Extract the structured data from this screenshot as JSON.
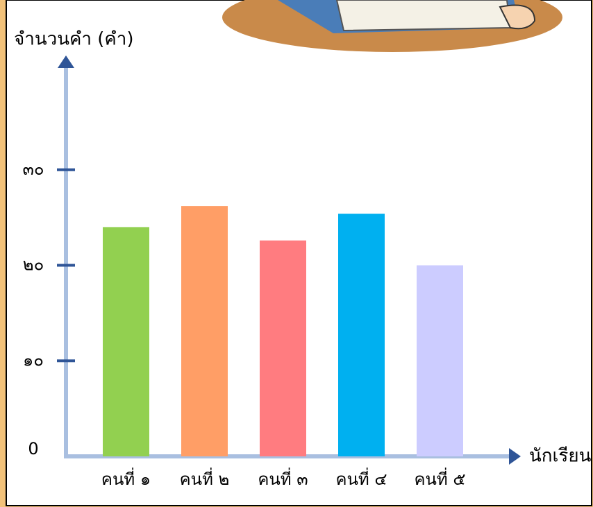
{
  "chart_data": {
    "type": "bar",
    "y_label": "จำนวนคำ (คำ)",
    "x_label": "นักเรียน",
    "categories": [
      "คนที่ ๑",
      "คนที่ ๒",
      "คนที่ ๓",
      "คนที่ ๔",
      "คนที่ ๕"
    ],
    "values": [
      24,
      26.2,
      22.6,
      25.4,
      20
    ],
    "colors": [
      "#92d050",
      "#ff9e66",
      "#ff7c80",
      "#00b0f0",
      "#ccccff"
    ],
    "ylim": [
      0,
      40
    ],
    "yticks": [
      0,
      {
        "value": 10,
        "label": "๑๐"
      },
      {
        "value": 20,
        "label": "๒๐"
      },
      {
        "value": 30,
        "label": "๓๐"
      }
    ]
  }
}
